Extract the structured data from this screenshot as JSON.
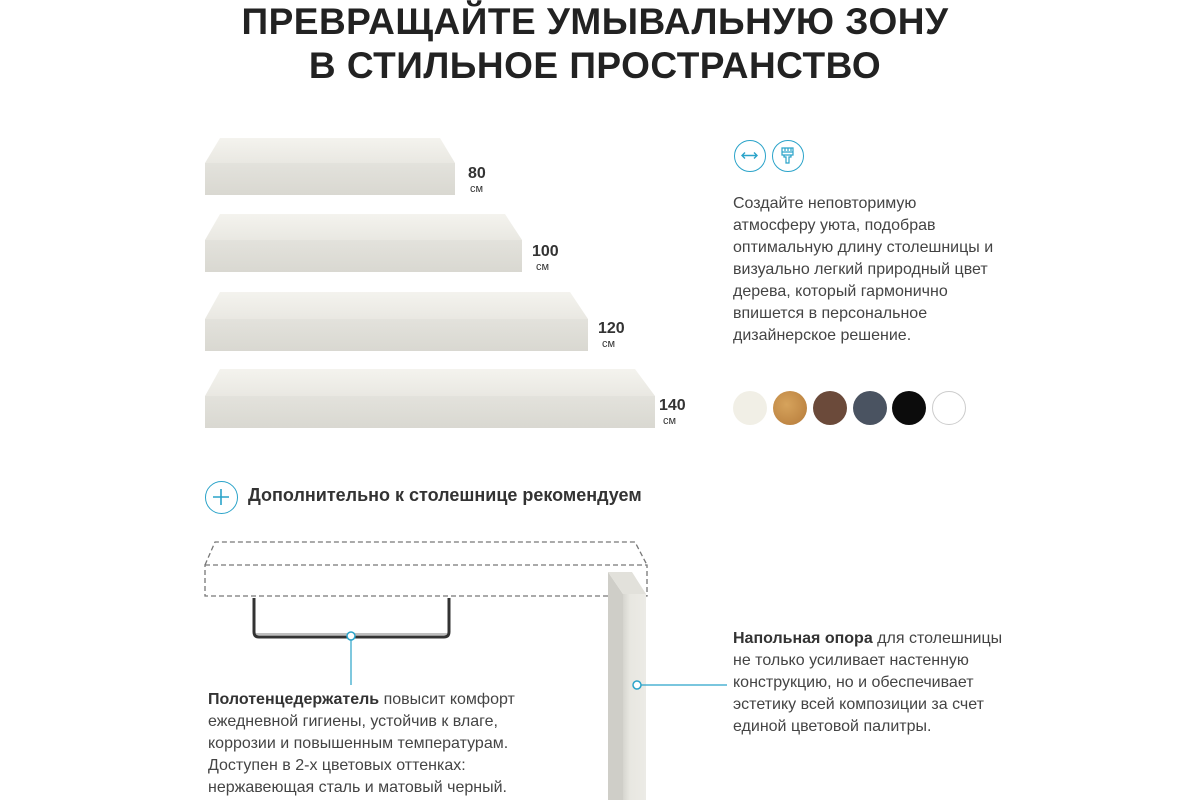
{
  "title": {
    "line1": "ПРЕВРАЩАЙТЕ УМЫВАЛЬНУЮ ЗОНУ",
    "line2": "В СТИЛЬНОЕ ПРОСТРАНСТВО"
  },
  "sizes": [
    {
      "value": "80",
      "unit": "см"
    },
    {
      "value": "100",
      "unit": "см"
    },
    {
      "value": "120",
      "unit": "см"
    },
    {
      "value": "140",
      "unit": "см"
    }
  ],
  "feature_icons": [
    "length-arrows-icon",
    "paint-brush-icon"
  ],
  "description": "Создайте неповторимую атмосферу уюта, подобрав оптимальную длину столешницы и визуально легкий природный цвет дерева, который гармонично впишется в персональное дизайнерское решение.",
  "colors": [
    "#f1efe6",
    "#c8904a",
    "#6b4a3a",
    "#4a5361",
    "#0c0c0c",
    "#ffffff"
  ],
  "accent_color": "#2aa3c9",
  "recommend": {
    "heading": "Дополнительно к столешнице рекомендуем"
  },
  "towel_holder": {
    "name": "Полотенцедержатель",
    "text": " повысит комфорт ежедневной гигиены, устойчив к влаге, коррозии и повышенным температурам. Доступен в 2-х цветовых оттенках: нержавеющая сталь и матовый черный."
  },
  "floor_support": {
    "name": "Напольная опора",
    "text": " для столешницы не только усиливает настенную конструкцию, но и обеспечивает эстетику всей композиции за счет единой цветовой палитры."
  }
}
